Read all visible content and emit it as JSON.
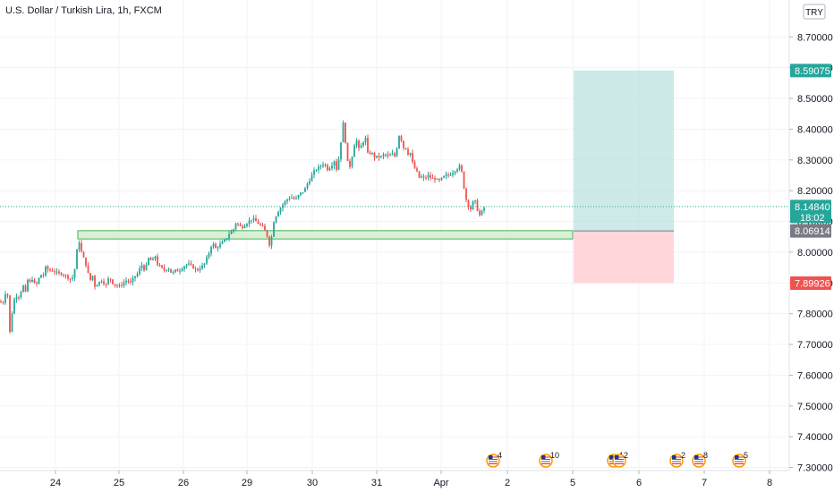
{
  "header": {
    "title": "U.S. Dollar / Turkish Lira, 1h, FXCM",
    "currency_badge": "TRY"
  },
  "colors": {
    "up": "#26a69a",
    "down": "#ef5350",
    "grid": "#f0f3fa",
    "axis_text": "#131722",
    "price_tag": "#26a69a",
    "entry_tag": "#787b86",
    "stop_tag": "#ef5350",
    "target_zone": "#b2dfdb",
    "stop_zone": "#ffcdd2",
    "support_zone_fill": "#d8f0d8",
    "support_zone_border": "#4caf50"
  },
  "chart_data": {
    "type": "candlestick",
    "title": "U.S. Dollar / Turkish Lira, 1h, FXCM",
    "y_axis": {
      "ticks": [
        "8.70000",
        "8.60000",
        "8.50000",
        "8.40000",
        "8.30000",
        "8.20000",
        "8.10000",
        "8.00000",
        "7.90000",
        "7.80000",
        "7.70000",
        "7.60000",
        "7.50000",
        "7.40000",
        "7.30000"
      ],
      "tick_values": [
        8.7,
        8.6,
        8.5,
        8.4,
        8.3,
        8.2,
        8.1,
        8.0,
        7.9,
        7.8,
        7.7,
        7.6,
        7.5,
        7.4,
        7.3
      ],
      "range": [
        7.29,
        8.82
      ]
    },
    "x_axis": {
      "ticks": [
        "24",
        "25",
        "26",
        "29",
        "30",
        "31",
        "Apr",
        "2",
        "5",
        "6",
        "7",
        "8"
      ]
    },
    "current_price": {
      "value": 8.1484,
      "label": "8.14840",
      "countdown": "18:02"
    },
    "position": {
      "target": {
        "value": 8.59075,
        "label": "8.59075"
      },
      "entry": {
        "value": 8.06914,
        "label": "8.06914"
      },
      "stop": {
        "value": 7.89926,
        "label": "7.89926"
      },
      "start_date": "Apr 5",
      "end_date": "Apr 7"
    },
    "support_zone": {
      "top": 8.07,
      "bottom": 8.043,
      "from": "Mar 24",
      "to": "Apr 5"
    },
    "price_path": [
      [
        0,
        7.84
      ],
      [
        3,
        7.83
      ],
      [
        5,
        7.86
      ],
      [
        8,
        7.88
      ],
      [
        10,
        7.8
      ],
      [
        11,
        7.74
      ],
      [
        13,
        7.79
      ],
      [
        15,
        7.84
      ],
      [
        18,
        7.86
      ],
      [
        20,
        7.85
      ],
      [
        23,
        7.87
      ],
      [
        26,
        7.89
      ],
      [
        28,
        7.86
      ],
      [
        31,
        7.91
      ],
      [
        34,
        7.9
      ],
      [
        37,
        7.92
      ],
      [
        39,
        7.89
      ],
      [
        42,
        7.9
      ],
      [
        45,
        7.93
      ],
      [
        48,
        7.92
      ],
      [
        51,
        7.95
      ],
      [
        55,
        7.94
      ],
      [
        60,
        7.94
      ],
      [
        65,
        7.93
      ],
      [
        70,
        7.93
      ],
      [
        75,
        7.92
      ],
      [
        80,
        7.91
      ],
      [
        83,
        7.93
      ],
      [
        85,
        7.99
      ],
      [
        87,
        8.02
      ],
      [
        88,
        8.04
      ],
      [
        90,
        8.01
      ],
      [
        92,
        7.99
      ],
      [
        95,
        7.97
      ],
      [
        98,
        7.94
      ],
      [
        100,
        7.9
      ],
      [
        103,
        7.93
      ],
      [
        106,
        7.89
      ],
      [
        110,
        7.9
      ],
      [
        114,
        7.91
      ],
      [
        118,
        7.89
      ],
      [
        122,
        7.92
      ],
      [
        126,
        7.9
      ],
      [
        130,
        7.89
      ],
      [
        134,
        7.89
      ],
      [
        138,
        7.9
      ],
      [
        142,
        7.91
      ],
      [
        146,
        7.9
      ],
      [
        150,
        7.92
      ],
      [
        154,
        7.93
      ],
      [
        158,
        7.96
      ],
      [
        162,
        7.94
      ],
      [
        166,
        7.98
      ],
      [
        170,
        7.97
      ],
      [
        174,
        7.99
      ],
      [
        176,
        7.96
      ],
      [
        180,
        7.95
      ],
      [
        184,
        7.94
      ],
      [
        188,
        7.95
      ],
      [
        192,
        7.93
      ],
      [
        196,
        7.94
      ],
      [
        200,
        7.94
      ],
      [
        204,
        7.95
      ],
      [
        208,
        7.96
      ],
      [
        212,
        7.96
      ],
      [
        216,
        7.95
      ],
      [
        220,
        7.94
      ],
      [
        224,
        7.95
      ],
      [
        228,
        7.96
      ],
      [
        230,
        7.97
      ],
      [
        232,
        7.99
      ],
      [
        234,
        8.0
      ],
      [
        236,
        8.02
      ],
      [
        238,
        8.03
      ],
      [
        240,
        8.01
      ],
      [
        244,
        8.02
      ],
      [
        248,
        8.03
      ],
      [
        252,
        8.04
      ],
      [
        256,
        8.06
      ],
      [
        260,
        8.07
      ],
      [
        262,
        8.08
      ],
      [
        264,
        8.1
      ],
      [
        266,
        8.09
      ],
      [
        270,
        8.08
      ],
      [
        274,
        8.09
      ],
      [
        278,
        8.1
      ],
      [
        282,
        8.11
      ],
      [
        286,
        8.1
      ],
      [
        290,
        8.09
      ],
      [
        294,
        8.08
      ],
      [
        298,
        8.06
      ],
      [
        300,
        8.03
      ],
      [
        302,
        8.02
      ],
      [
        304,
        8.06
      ],
      [
        306,
        8.1
      ],
      [
        310,
        8.13
      ],
      [
        315,
        8.15
      ],
      [
        320,
        8.17
      ],
      [
        325,
        8.18
      ],
      [
        330,
        8.17
      ],
      [
        335,
        8.19
      ],
      [
        340,
        8.2
      ],
      [
        343,
        8.22
      ],
      [
        347,
        8.24
      ],
      [
        350,
        8.26
      ],
      [
        354,
        8.27
      ],
      [
        358,
        8.28
      ],
      [
        362,
        8.29
      ],
      [
        366,
        8.27
      ],
      [
        370,
        8.28
      ],
      [
        374,
        8.3
      ],
      [
        376,
        8.27
      ],
      [
        378,
        8.29
      ],
      [
        380,
        8.34
      ],
      [
        382,
        8.38
      ],
      [
        384,
        8.43
      ],
      [
        386,
        8.36
      ],
      [
        388,
        8.3
      ],
      [
        390,
        8.27
      ],
      [
        392,
        8.29
      ],
      [
        394,
        8.32
      ],
      [
        396,
        8.35
      ],
      [
        398,
        8.37
      ],
      [
        400,
        8.34
      ],
      [
        402,
        8.33
      ],
      [
        404,
        8.35
      ],
      [
        406,
        8.36
      ],
      [
        408,
        8.38
      ],
      [
        410,
        8.34
      ],
      [
        412,
        8.3
      ],
      [
        414,
        8.33
      ],
      [
        418,
        8.31
      ],
      [
        422,
        8.31
      ],
      [
        426,
        8.31
      ],
      [
        430,
        8.32
      ],
      [
        434,
        8.31
      ],
      [
        438,
        8.32
      ],
      [
        442,
        8.31
      ],
      [
        444,
        8.35
      ],
      [
        446,
        8.38
      ],
      [
        448,
        8.37
      ],
      [
        450,
        8.35
      ],
      [
        452,
        8.33
      ],
      [
        454,
        8.34
      ],
      [
        456,
        8.32
      ],
      [
        458,
        8.33
      ],
      [
        460,
        8.3
      ],
      [
        462,
        8.28
      ],
      [
        464,
        8.27
      ],
      [
        466,
        8.26
      ],
      [
        468,
        8.24
      ],
      [
        470,
        8.25
      ],
      [
        472,
        8.24
      ],
      [
        475,
        8.24
      ],
      [
        478,
        8.25
      ],
      [
        482,
        8.24
      ],
      [
        486,
        8.24
      ],
      [
        490,
        8.23
      ],
      [
        494,
        8.24
      ],
      [
        498,
        8.25
      ],
      [
        502,
        8.25
      ],
      [
        506,
        8.26
      ],
      [
        510,
        8.27
      ],
      [
        514,
        8.28
      ],
      [
        516,
        8.26
      ],
      [
        518,
        8.22
      ],
      [
        520,
        8.18
      ],
      [
        522,
        8.16
      ],
      [
        524,
        8.15
      ],
      [
        526,
        8.14
      ],
      [
        528,
        8.16
      ],
      [
        530,
        8.17
      ],
      [
        532,
        8.16
      ],
      [
        534,
        8.13
      ],
      [
        536,
        8.12
      ],
      [
        538,
        8.13
      ],
      [
        540,
        8.14
      ],
      [
        542,
        8.148
      ]
    ]
  },
  "events": [
    {
      "flag": "us",
      "label": "4"
    },
    {
      "flag": "us",
      "label": "10"
    },
    {
      "flag": "us",
      "label": "4"
    },
    {
      "flag": "us",
      "label": "2"
    },
    {
      "flag": "us",
      "label": "2"
    },
    {
      "flag": "us",
      "label": "8"
    },
    {
      "flag": "us",
      "label": "5"
    }
  ]
}
